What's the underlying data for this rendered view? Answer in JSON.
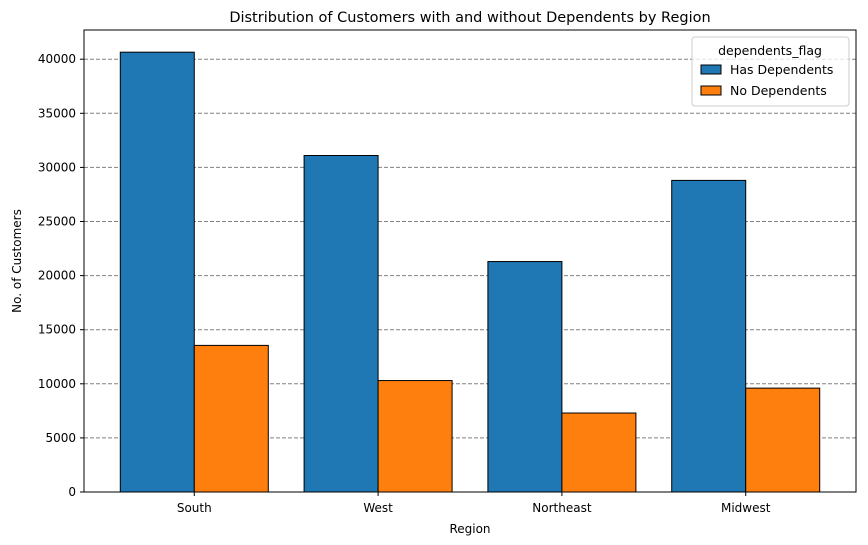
{
  "chart_data": {
    "type": "bar",
    "title": "Distribution of Customers with and without Dependents by Region",
    "xlabel": "Region",
    "ylabel": "No. of Customers",
    "categories": [
      "South",
      "West",
      "Northeast",
      "Midwest"
    ],
    "series": [
      {
        "name": "Has Dependents",
        "values": [
          40650,
          31100,
          21300,
          28800
        ],
        "color": "#1f77b4"
      },
      {
        "name": "No Dependents",
        "values": [
          13550,
          10300,
          7300,
          9600
        ],
        "color": "#ff7f0e"
      }
    ],
    "ylim": [
      0,
      42700
    ],
    "yticks": [
      0,
      5000,
      10000,
      15000,
      20000,
      25000,
      30000,
      35000,
      40000
    ],
    "ytick_labels": [
      "0",
      "5000",
      "10000",
      "15000",
      "20000",
      "25000",
      "30000",
      "35000",
      "40000"
    ],
    "grid": "y-dashed",
    "legend": {
      "title": "dependents_flag",
      "position": "top-right"
    }
  }
}
